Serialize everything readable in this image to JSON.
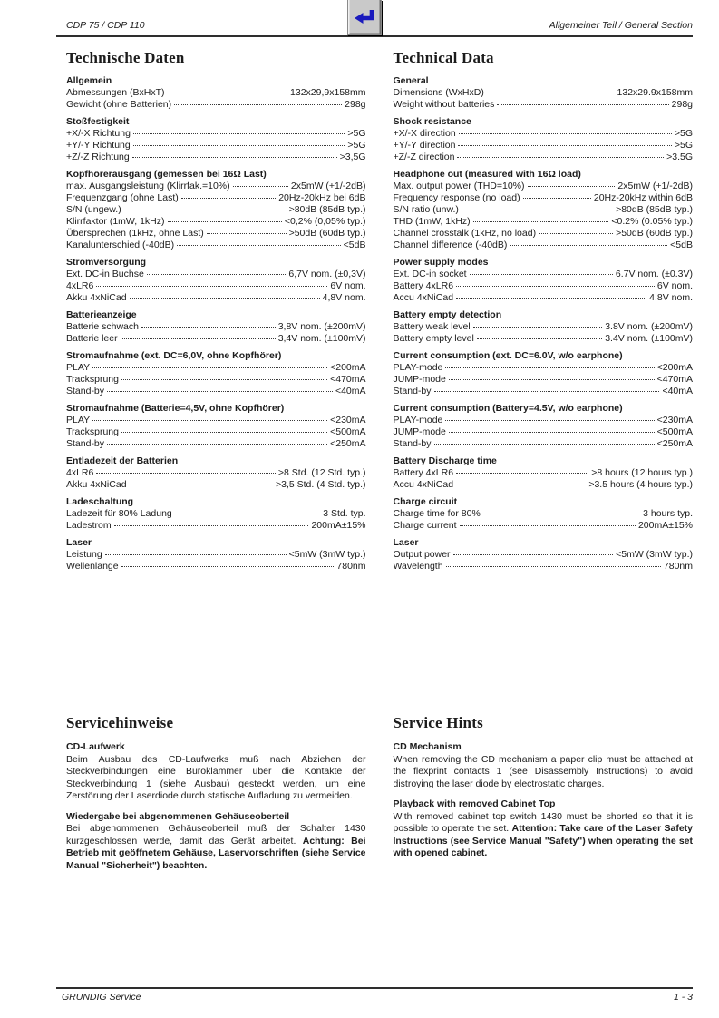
{
  "header": {
    "model": "CDP 75 / CDP 110",
    "section": "Allgemeiner Teil / General Section",
    "nav_icon": "return-arrow-icon",
    "nav_icon_color": "#1a1abd"
  },
  "columns": [
    {
      "title": "Technische Daten",
      "sections": [
        {
          "heading": "Allgemein",
          "rows": [
            [
              "Abmessungen (BxHxT)",
              "132x29,9x158mm"
            ],
            [
              "Gewicht (ohne Batterien)",
              "298g"
            ]
          ]
        },
        {
          "heading": "Stoßfestigkeit",
          "rows": [
            [
              "+X/-X Richtung",
              ">5G"
            ],
            [
              "+Y/-Y Richtung",
              ">5G"
            ],
            [
              "+Z/-Z Richtung",
              ">3,5G"
            ]
          ]
        },
        {
          "heading": "Kopfhörerausgang (gemessen bei 16Ω Last)",
          "rows": [
            [
              "max. Ausgangsleistung (Klirrfak.=10%)",
              "2x5mW (+1/-2dB)"
            ],
            [
              "Frequenzgang (ohne Last)",
              "20Hz-20kHz bei 6dB"
            ],
            [
              "S/N (ungew.)",
              ">80dB (85dB typ.)"
            ],
            [
              "Klirrfaktor (1mW, 1kHz)",
              "<0,2% (0,05% typ.)"
            ],
            [
              "Übersprechen (1kHz, ohne Last)",
              ">50dB (60dB typ.)"
            ],
            [
              "Kanalunterschied (-40dB)",
              "<5dB"
            ]
          ]
        },
        {
          "heading": "Stromversorgung",
          "rows": [
            [
              "Ext. DC-in Buchse",
              "6,7V nom. (±0,3V)"
            ],
            [
              "4xLR6",
              "6V nom."
            ],
            [
              "Akku 4xNiCad",
              "4,8V nom."
            ]
          ]
        },
        {
          "heading": "Batterieanzeige",
          "rows": [
            [
              "Batterie schwach",
              "3,8V nom. (±200mV)"
            ],
            [
              "Batterie leer",
              "3,4V nom. (±100mV)"
            ]
          ]
        },
        {
          "heading": "Stromaufnahme (ext. DC=6,0V, ohne Kopfhörer)",
          "rows": [
            [
              "PLAY",
              "<200mA"
            ],
            [
              "Tracksprung",
              "<470mA"
            ],
            [
              "Stand-by",
              "<40mA"
            ]
          ]
        },
        {
          "heading": "Stromaufnahme (Batterie=4,5V, ohne Kopfhörer)",
          "rows": [
            [
              "PLAY",
              "<230mA"
            ],
            [
              "Tracksprung",
              "<500mA"
            ],
            [
              "Stand-by",
              "<250mA"
            ]
          ]
        },
        {
          "heading": "Entladezeit der Batterien",
          "rows": [
            [
              "4xLR6",
              ">8 Std. (12 Std. typ.)"
            ],
            [
              "Akku 4xNiCad",
              ">3,5 Std. (4 Std. typ.)"
            ]
          ]
        },
        {
          "heading": "Ladeschaltung",
          "rows": [
            [
              "Ladezeit für 80% Ladung",
              "3 Std. typ."
            ],
            [
              "Ladestrom",
              "200mA±15%"
            ]
          ]
        },
        {
          "heading": "Laser",
          "rows": [
            [
              "Leistung",
              "<5mW (3mW typ.)"
            ],
            [
              "Wellenlänge",
              "780nm"
            ]
          ]
        }
      ]
    },
    {
      "title": "Technical Data",
      "sections": [
        {
          "heading": "General",
          "rows": [
            [
              "Dimensions (WxHxD)",
              "132x29.9x158mm"
            ],
            [
              "Weight without batteries",
              "298g"
            ]
          ]
        },
        {
          "heading": "Shock resistance",
          "rows": [
            [
              "+X/-X direction",
              ">5G"
            ],
            [
              "+Y/-Y direction",
              ">5G"
            ],
            [
              "+Z/-Z direction",
              ">3.5G"
            ]
          ]
        },
        {
          "heading": "Headphone out (measured with 16Ω load)",
          "rows": [
            [
              "Max. output power (THD=10%)",
              "2x5mW (+1/-2dB)"
            ],
            [
              "Frequency response (no load)",
              "20Hz-20kHz within 6dB"
            ],
            [
              "S/N ratio (unw.)",
              ">80dB (85dB typ.)"
            ],
            [
              "THD (1mW, 1kHz)",
              "<0.2% (0.05% typ.)"
            ],
            [
              "Channel crosstalk (1kHz, no load)",
              ">50dB (60dB typ.)"
            ],
            [
              "Channel difference (-40dB)",
              "<5dB"
            ]
          ]
        },
        {
          "heading": "Power supply modes",
          "rows": [
            [
              "Ext. DC-in socket",
              "6.7V nom. (±0.3V)"
            ],
            [
              "Battery 4xLR6",
              "6V nom."
            ],
            [
              "Accu 4xNiCad",
              "4.8V nom."
            ]
          ]
        },
        {
          "heading": "Battery empty detection",
          "rows": [
            [
              "Battery weak level",
              "3.8V nom. (±200mV)"
            ],
            [
              "Battery empty level",
              "3.4V nom. (±100mV)"
            ]
          ]
        },
        {
          "heading": "Current consumption (ext. DC=6.0V, w/o earphone)",
          "rows": [
            [
              "PLAY-mode",
              "<200mA"
            ],
            [
              "JUMP-mode",
              "<470mA"
            ],
            [
              "Stand-by",
              "<40mA"
            ]
          ]
        },
        {
          "heading": "Current consumption (Battery=4.5V, w/o earphone)",
          "rows": [
            [
              "PLAY-mode",
              "<230mA"
            ],
            [
              "JUMP-mode",
              "<500mA"
            ],
            [
              "Stand-by",
              "<250mA"
            ]
          ]
        },
        {
          "heading": "Battery Discharge time",
          "rows": [
            [
              "Battery 4xLR6",
              ">8 hours (12 hours typ.)"
            ],
            [
              "Accu 4xNiCad",
              ">3.5 hours (4 hours typ.)"
            ]
          ]
        },
        {
          "heading": "Charge circuit",
          "rows": [
            [
              "Charge time for 80%",
              "3 hours typ."
            ],
            [
              "Charge current",
              "200mA±15%"
            ]
          ]
        },
        {
          "heading": "Laser",
          "rows": [
            [
              "Output power",
              "<5mW (3mW typ.)"
            ],
            [
              "Wavelength",
              "780nm"
            ]
          ]
        }
      ]
    }
  ],
  "service": {
    "left": {
      "title": "Servicehinweise",
      "blocks": [
        {
          "heading": "CD-Laufwerk",
          "text": "Beim Ausbau des CD-Laufwerks muß nach Abziehen der Steckverbindungen eine Büroklammer über die Kontakte der Steckverbindung 1 (siehe Ausbau) gesteckt werden, um eine Zerstörung der Laserdiode durch statische Aufladung zu vermeiden.",
          "bold": ""
        },
        {
          "heading": "Wiedergabe bei abgenommenen Gehäuseoberteil",
          "text": "Bei abgenommenen Gehäuseoberteil muß der Schalter 1430 kurzgeschlossen werde, damit das Gerät arbeitet. ",
          "bold": "Achtung: Bei Betrieb mit geöffnetem Gehäuse, Laservorschriften (siehe Service Manual \"Sicherheit\") beachten."
        }
      ]
    },
    "right": {
      "title": "Service Hints",
      "blocks": [
        {
          "heading": "CD Mechanism",
          "text": "When removing the CD mechanism a paper clip must be attached at the flexprint contacts 1 (see Disassembly Instructions) to avoid distroying the laser diode by electrostatic charges.",
          "bold": ""
        },
        {
          "heading": "Playback with removed Cabinet Top",
          "text": "With removed cabinet top switch 1430 must be shorted so that it is possible to operate the set. ",
          "bold": "Attention: Take care of the Laser Safety Instructions (see Service Manual \"Safety\") when operating the set with opened cabinet."
        }
      ]
    }
  },
  "footer": {
    "left": "GRUNDIG Service",
    "page": "1 - 3"
  }
}
